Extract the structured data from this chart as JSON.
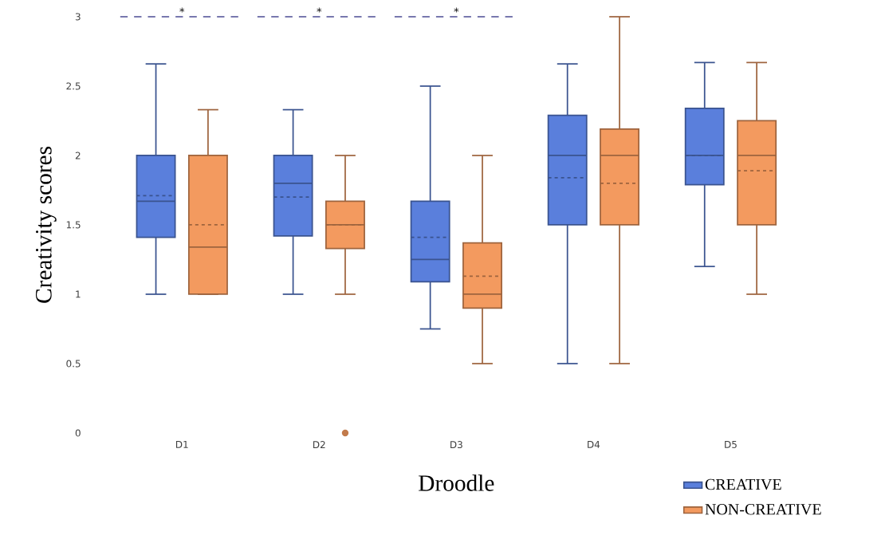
{
  "chart_data": {
    "type": "box",
    "xlabel": "Droodle",
    "ylabel": "Creativity scores",
    "categories": [
      "D1",
      "D2",
      "D3",
      "D4",
      "D5"
    ],
    "ylim": [
      0,
      3
    ],
    "yticks": [
      0,
      0.5,
      1,
      1.5,
      2,
      2.5,
      3
    ],
    "legend": "bottom right",
    "grid": false,
    "series": [
      {
        "name": "CREATIVE",
        "color": "#5a7fdc",
        "boxes": [
          {
            "low": 1.0,
            "q1": 1.41,
            "median": 1.67,
            "q3": 2.0,
            "high": 2.66,
            "mean": 1.71
          },
          {
            "low": 1.0,
            "q1": 1.42,
            "median": 1.8,
            "q3": 2.0,
            "high": 2.33,
            "mean": 1.7
          },
          {
            "low": 0.75,
            "q1": 1.09,
            "median": 1.25,
            "q3": 1.67,
            "high": 2.5,
            "mean": 1.41
          },
          {
            "low": 0.5,
            "q1": 1.5,
            "median": 2.0,
            "q3": 2.29,
            "high": 2.66,
            "mean": 1.84
          },
          {
            "low": 1.2,
            "q1": 1.79,
            "median": 2.0,
            "q3": 2.34,
            "high": 2.67,
            "mean": 2.0
          }
        ]
      },
      {
        "name": "NON-CREATIVE",
        "color": "#f39a5f",
        "boxes": [
          {
            "low": 1.0,
            "q1": 1.0,
            "median": 1.34,
            "q3": 2.0,
            "high": 2.33,
            "mean": 1.5
          },
          {
            "low": 1.0,
            "q1": 1.33,
            "median": 1.5,
            "q3": 1.67,
            "high": 2.0,
            "mean": 1.5,
            "outliers": [
              0
            ]
          },
          {
            "low": 0.5,
            "q1": 0.9,
            "median": 1.0,
            "q3": 1.37,
            "high": 2.0,
            "mean": 1.13
          },
          {
            "low": 0.5,
            "q1": 1.5,
            "median": 2.0,
            "q3": 2.19,
            "high": 3.0,
            "mean": 1.8
          },
          {
            "low": 1.0,
            "q1": 1.5,
            "median": 2.0,
            "q3": 2.25,
            "high": 2.67,
            "mean": 1.89
          }
        ]
      }
    ],
    "annotations": [
      "*",
      "*",
      "*"
    ]
  }
}
